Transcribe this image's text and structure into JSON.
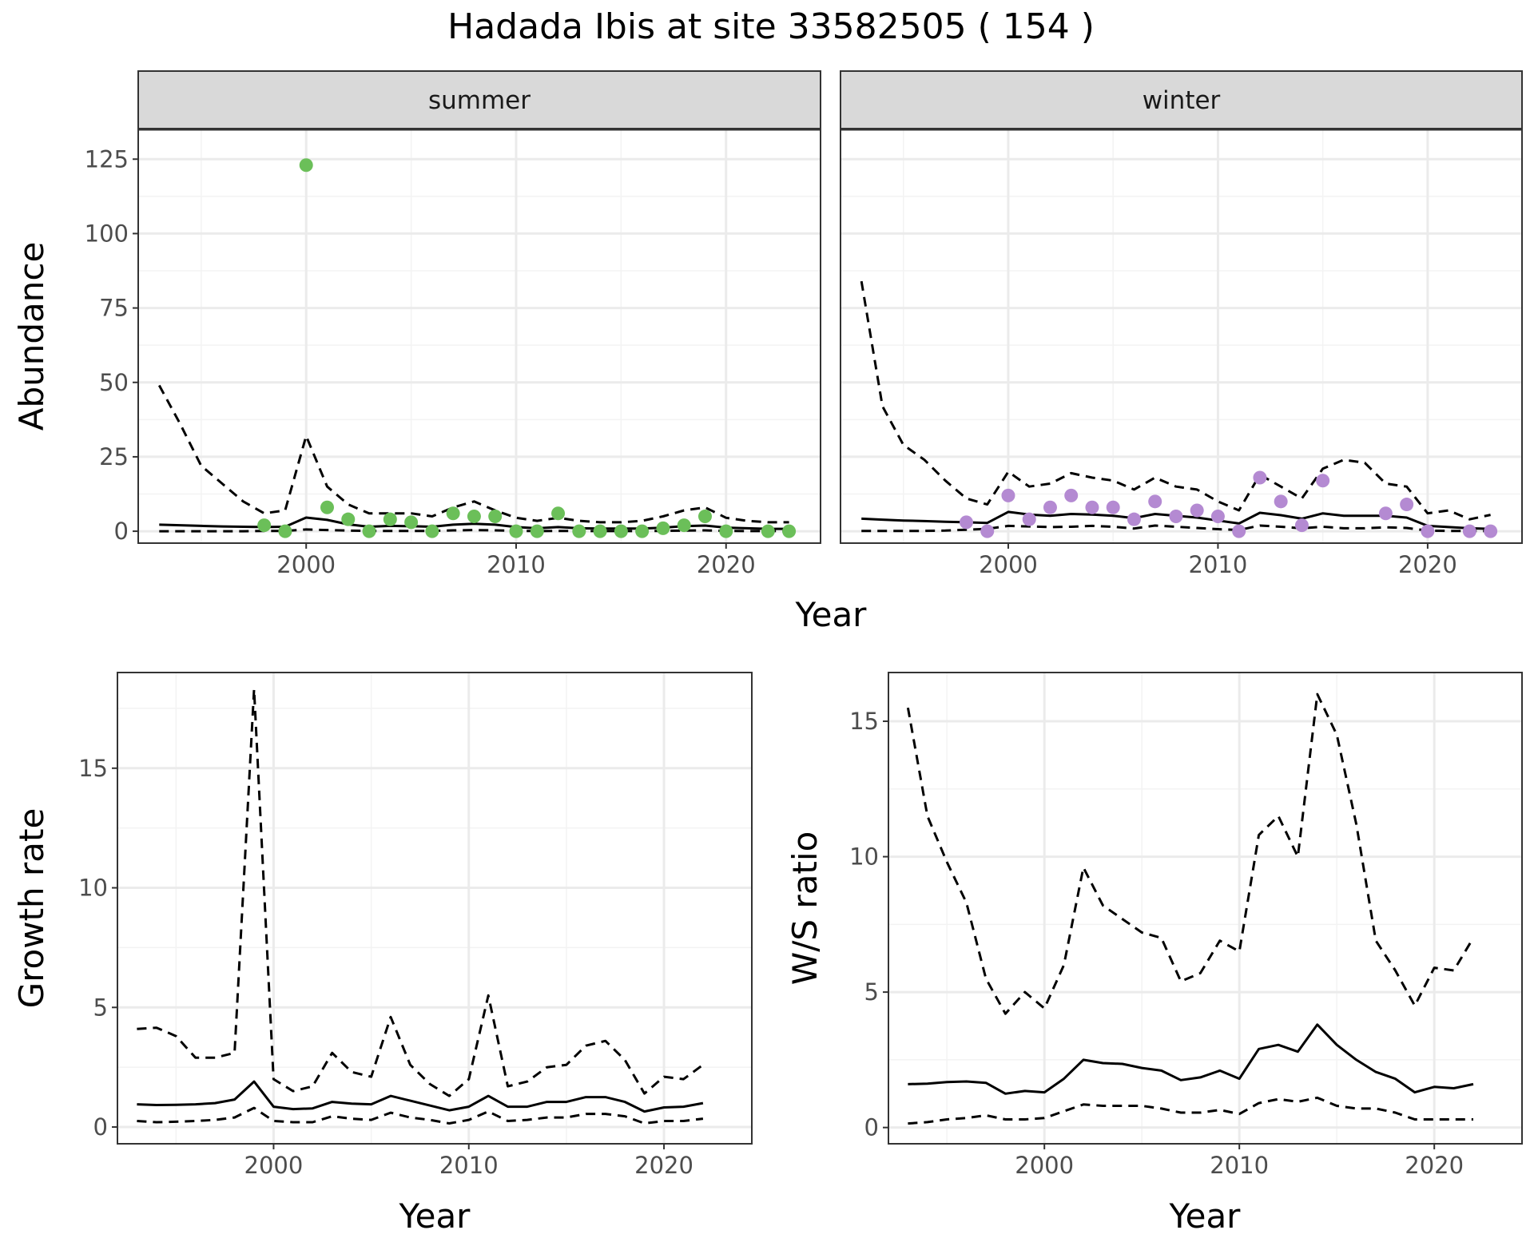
{
  "title": "Hadada Ibis at site 33582505 ( 154 )",
  "colors": {
    "summer_points": "#6bbf59",
    "winter_points": "#b48ad2",
    "line": "#000000",
    "major_grid": "#ebebeb",
    "minor_grid": "#f3f3f3",
    "strip_fill": "#d9d9d9",
    "panel_border": "#333333",
    "tick_text": "#4d4d4d"
  },
  "chart_data": [
    {
      "type": "line",
      "panel": "summer",
      "strip_label": "summer",
      "ylabel": "Abundance",
      "xlabel": "Year",
      "xlim": [
        1992,
        2024.5
      ],
      "ylim": [
        -4,
        135
      ],
      "x_ticks": [
        2000,
        2010,
        2020
      ],
      "y_ticks": [
        0,
        25,
        50,
        75,
        100,
        125
      ],
      "grid": true,
      "series": [
        {
          "style": "solid",
          "x": [
            1993,
            1994,
            1995,
            1996,
            1997,
            1998,
            1999,
            2000,
            2001,
            2002,
            2003,
            2004,
            2005,
            2006,
            2007,
            2008,
            2009,
            2010,
            2011,
            2012,
            2013,
            2014,
            2015,
            2016,
            2017,
            2018,
            2019,
            2020,
            2021,
            2022,
            2023
          ],
          "y": [
            2.2,
            2.0,
            1.8,
            1.6,
            1.5,
            1.4,
            1.5,
            4.6,
            3.8,
            2.3,
            1.5,
            1.8,
            1.7,
            1.5,
            2.2,
            2.5,
            2.2,
            1.4,
            1.0,
            1.4,
            1.0,
            0.9,
            0.9,
            0.9,
            1.2,
            1.7,
            1.9,
            1.2,
            1.0,
            0.8,
            0.8
          ]
        },
        {
          "style": "dashed",
          "x": [
            1993,
            1994,
            1995,
            1996,
            1997,
            1998,
            1999,
            2000,
            2001,
            2002,
            2003,
            2004,
            2005,
            2006,
            2007,
            2008,
            2009,
            2010,
            2011,
            2012,
            2013,
            2014,
            2015,
            2016,
            2017,
            2018,
            2019,
            2020,
            2021,
            2022,
            2023
          ],
          "y": [
            49,
            36,
            22,
            16,
            10,
            6,
            7,
            32,
            15,
            9,
            6,
            6,
            6,
            5,
            8,
            10,
            7,
            4.5,
            3.5,
            4.5,
            3.5,
            3,
            3,
            3.5,
            5,
            7,
            8,
            4.5,
            3.5,
            3,
            3
          ]
        },
        {
          "style": "dashed",
          "x": [
            1993,
            1994,
            1995,
            1996,
            1997,
            1998,
            1999,
            2000,
            2001,
            2002,
            2003,
            2004,
            2005,
            2006,
            2007,
            2008,
            2009,
            2010,
            2011,
            2012,
            2013,
            2014,
            2015,
            2016,
            2017,
            2018,
            2019,
            2020,
            2021,
            2022,
            2023
          ],
          "y": [
            0,
            0,
            0,
            0,
            0,
            0.1,
            0.1,
            0.6,
            0.4,
            0.2,
            0.1,
            0.1,
            0.1,
            0.1,
            0.3,
            0.4,
            0.3,
            0.1,
            0.05,
            0.1,
            0.05,
            0.05,
            0.05,
            0.05,
            0.1,
            0.2,
            0.3,
            0.1,
            0.05,
            0.05,
            0.05
          ]
        }
      ],
      "points": {
        "x": [
          1998,
          1999,
          2000,
          2001,
          2002,
          2003,
          2004,
          2005,
          2006,
          2007,
          2008,
          2009,
          2010,
          2011,
          2012,
          2013,
          2014,
          2015,
          2016,
          2017,
          2018,
          2019,
          2020,
          2022,
          2023
        ],
        "y": [
          2,
          0,
          123,
          8,
          4,
          0,
          4,
          3,
          0,
          6,
          5,
          5,
          0,
          0,
          6,
          0,
          0,
          0,
          0,
          1,
          2,
          5,
          0,
          0,
          0
        ]
      }
    },
    {
      "type": "line",
      "panel": "winter",
      "strip_label": "winter",
      "ylabel": "Abundance",
      "xlabel": "Year",
      "xlim": [
        1992,
        2024.5
      ],
      "ylim": [
        -4,
        135
      ],
      "x_ticks": [
        2000,
        2010,
        2020
      ],
      "y_ticks": [
        0,
        25,
        50,
        75,
        100,
        125
      ],
      "grid": true,
      "series": [
        {
          "style": "solid",
          "x": [
            1993,
            1994,
            1995,
            1996,
            1997,
            1998,
            1999,
            2000,
            2001,
            2002,
            2003,
            2004,
            2005,
            2006,
            2007,
            2008,
            2009,
            2010,
            2011,
            2012,
            2013,
            2014,
            2015,
            2016,
            2017,
            2018,
            2019,
            2020,
            2021,
            2022,
            2023
          ],
          "y": [
            4.2,
            3.9,
            3.6,
            3.4,
            3.2,
            3.0,
            2.8,
            6.5,
            5.6,
            5.2,
            5.8,
            5.6,
            5.2,
            4.4,
            5.8,
            5.2,
            4.6,
            3.6,
            2.6,
            6.2,
            5.4,
            4.2,
            6.0,
            5.2,
            5.2,
            5.2,
            4.6,
            1.8,
            1.4,
            1.0,
            0.8
          ]
        },
        {
          "style": "dashed",
          "x": [
            1993,
            1994,
            1995,
            1996,
            1997,
            1998,
            1999,
            2000,
            2001,
            2002,
            2003,
            2004,
            2005,
            2006,
            2007,
            2008,
            2009,
            2010,
            2011,
            2012,
            2013,
            2014,
            2015,
            2016,
            2017,
            2018,
            2019,
            2020,
            2021,
            2022,
            2023
          ],
          "y": [
            84,
            42,
            29,
            24,
            17,
            11,
            9,
            20,
            15,
            16,
            19.5,
            18,
            17,
            14,
            18,
            15,
            14,
            10,
            7,
            19,
            15,
            11,
            21,
            24,
            23,
            16,
            15,
            6,
            7,
            4,
            5.5
          ]
        },
        {
          "style": "dashed",
          "x": [
            1993,
            1994,
            1995,
            1996,
            1997,
            1998,
            1999,
            2000,
            2001,
            2002,
            2003,
            2004,
            2005,
            2006,
            2007,
            2008,
            2009,
            2010,
            2011,
            2012,
            2013,
            2014,
            2015,
            2016,
            2017,
            2018,
            2019,
            2020,
            2021,
            2022,
            2023
          ],
          "y": [
            0.1,
            0.1,
            0.1,
            0.1,
            0.2,
            0.5,
            0.8,
            1.8,
            1.6,
            1.4,
            1.5,
            1.8,
            1.5,
            0.9,
            1.9,
            1.5,
            1.1,
            0.7,
            0.4,
            1.9,
            1.5,
            1.0,
            1.5,
            1.0,
            1.0,
            1.3,
            1.1,
            0.2,
            0.1,
            0.1,
            0.05
          ]
        }
      ],
      "points": {
        "x": [
          1998,
          1999,
          2000,
          2001,
          2002,
          2003,
          2004,
          2005,
          2006,
          2007,
          2008,
          2009,
          2010,
          2011,
          2012,
          2013,
          2014,
          2015,
          2018,
          2019,
          2020,
          2022,
          2023
        ],
        "y": [
          3,
          0,
          12,
          4,
          8,
          12,
          8,
          8,
          4,
          10,
          5,
          7,
          5,
          0,
          18,
          10,
          2,
          17,
          6,
          9,
          0,
          0,
          0
        ]
      }
    },
    {
      "type": "line",
      "panel": "growth",
      "ylabel": "Growth rate",
      "xlabel": "Year",
      "xlim": [
        1992,
        2024.5
      ],
      "ylim": [
        -0.7,
        19
      ],
      "x_ticks": [
        2000,
        2010,
        2020
      ],
      "y_ticks": [
        0,
        5,
        10,
        15
      ],
      "grid": true,
      "series": [
        {
          "style": "solid",
          "x": [
            1993,
            1994,
            1995,
            1996,
            1997,
            1998,
            1999,
            2000,
            2001,
            2002,
            2003,
            2004,
            2005,
            2006,
            2007,
            2008,
            2009,
            2010,
            2011,
            2012,
            2013,
            2014,
            2015,
            2016,
            2017,
            2018,
            2019,
            2020,
            2021,
            2022
          ],
          "y": [
            0.95,
            0.92,
            0.93,
            0.95,
            1.0,
            1.15,
            1.9,
            0.85,
            0.75,
            0.78,
            1.05,
            0.98,
            0.95,
            1.3,
            1.1,
            0.9,
            0.7,
            0.85,
            1.3,
            0.85,
            0.85,
            1.05,
            1.05,
            1.25,
            1.25,
            1.05,
            0.65,
            0.82,
            0.85,
            1.0
          ]
        },
        {
          "style": "dashed",
          "x": [
            1993,
            1994,
            1995,
            1996,
            1997,
            1998,
            1999,
            2000,
            2001,
            2002,
            2003,
            2004,
            2005,
            2006,
            2007,
            2008,
            2009,
            2010,
            2011,
            2012,
            2013,
            2014,
            2015,
            2016,
            2017,
            2018,
            2019,
            2020,
            2021,
            2022
          ],
          "y": [
            4.1,
            4.15,
            3.8,
            2.9,
            2.9,
            3.1,
            18.3,
            2.0,
            1.5,
            1.7,
            3.1,
            2.3,
            2.1,
            4.6,
            2.6,
            1.8,
            1.3,
            2.0,
            5.5,
            1.7,
            1.9,
            2.5,
            2.6,
            3.4,
            3.6,
            2.8,
            1.4,
            2.1,
            2.0,
            2.6
          ]
        },
        {
          "style": "dashed",
          "x": [
            1993,
            1994,
            1995,
            1996,
            1997,
            1998,
            1999,
            2000,
            2001,
            2002,
            2003,
            2004,
            2005,
            2006,
            2007,
            2008,
            2009,
            2010,
            2011,
            2012,
            2013,
            2014,
            2015,
            2016,
            2017,
            2018,
            2019,
            2020,
            2021,
            2022
          ],
          "y": [
            0.25,
            0.2,
            0.22,
            0.25,
            0.3,
            0.4,
            0.8,
            0.25,
            0.2,
            0.2,
            0.45,
            0.35,
            0.3,
            0.6,
            0.4,
            0.3,
            0.15,
            0.3,
            0.65,
            0.25,
            0.3,
            0.4,
            0.4,
            0.55,
            0.55,
            0.45,
            0.15,
            0.25,
            0.25,
            0.35
          ]
        }
      ]
    },
    {
      "type": "line",
      "panel": "ratio",
      "ylabel": "W/S ratio",
      "xlabel": "Year",
      "xlim": [
        1992,
        2024.5
      ],
      "ylim": [
        -0.6,
        16.8
      ],
      "x_ticks": [
        2000,
        2010,
        2020
      ],
      "y_ticks": [
        0,
        5,
        10,
        15
      ],
      "grid": true,
      "series": [
        {
          "style": "solid",
          "x": [
            1993,
            1994,
            1995,
            1996,
            1997,
            1998,
            1999,
            2000,
            2001,
            2002,
            2003,
            2004,
            2005,
            2006,
            2007,
            2008,
            2009,
            2010,
            2011,
            2012,
            2013,
            2014,
            2015,
            2016,
            2017,
            2018,
            2019,
            2020,
            2021,
            2022
          ],
          "y": [
            1.6,
            1.62,
            1.68,
            1.7,
            1.65,
            1.25,
            1.35,
            1.3,
            1.8,
            2.5,
            2.38,
            2.35,
            2.2,
            2.1,
            1.75,
            1.85,
            2.1,
            1.8,
            2.9,
            3.05,
            2.8,
            3.8,
            3.05,
            2.5,
            2.05,
            1.8,
            1.3,
            1.5,
            1.45,
            1.6
          ]
        },
        {
          "style": "dashed",
          "x": [
            1993,
            1994,
            1995,
            1996,
            1997,
            1998,
            1999,
            2000,
            2001,
            2002,
            2003,
            2004,
            2005,
            2006,
            2007,
            2008,
            2009,
            2010,
            2011,
            2012,
            2013,
            2014,
            2015,
            2016,
            2017,
            2018,
            2019,
            2020,
            2021,
            2022
          ],
          "y": [
            15.5,
            11.5,
            9.8,
            8.3,
            5.5,
            4.2,
            5.0,
            4.4,
            6.0,
            9.6,
            8.2,
            7.7,
            7.2,
            7.0,
            5.4,
            5.7,
            6.9,
            6.5,
            10.8,
            11.5,
            10.0,
            16.0,
            14.5,
            11.2,
            6.9,
            5.8,
            4.5,
            5.9,
            5.8,
            7.0
          ]
        },
        {
          "style": "dashed",
          "x": [
            1993,
            1994,
            1995,
            1996,
            1997,
            1998,
            1999,
            2000,
            2001,
            2002,
            2003,
            2004,
            2005,
            2006,
            2007,
            2008,
            2009,
            2010,
            2011,
            2012,
            2013,
            2014,
            2015,
            2016,
            2017,
            2018,
            2019,
            2020,
            2021,
            2022
          ],
          "y": [
            0.15,
            0.2,
            0.3,
            0.35,
            0.45,
            0.3,
            0.3,
            0.35,
            0.6,
            0.85,
            0.8,
            0.8,
            0.8,
            0.7,
            0.55,
            0.55,
            0.65,
            0.5,
            0.9,
            1.05,
            0.95,
            1.1,
            0.8,
            0.7,
            0.7,
            0.55,
            0.3,
            0.3,
            0.3,
            0.3
          ]
        }
      ]
    }
  ]
}
